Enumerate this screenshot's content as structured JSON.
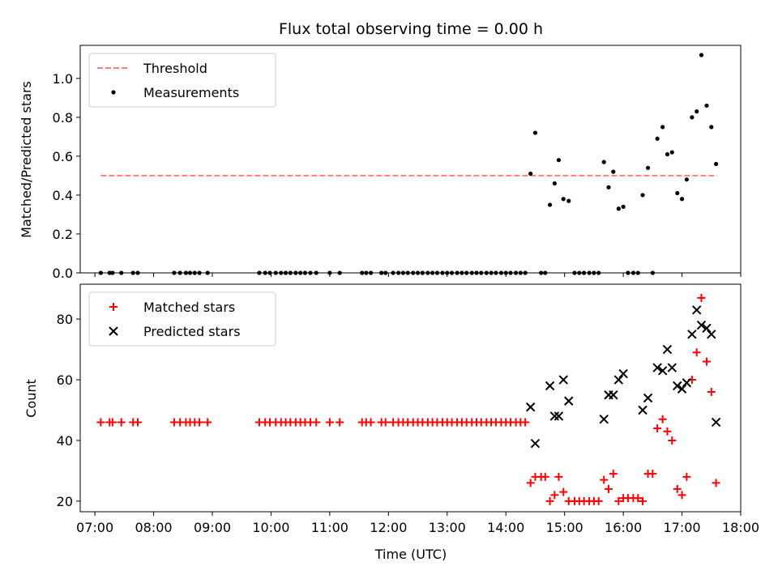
{
  "chart_data": [
    {
      "type": "scatter",
      "title": "Flux total observing time = 0.00 h",
      "xlabel": "",
      "ylabel": "Matched/Predicted stars",
      "xlim": [
        6.75,
        18.0
      ],
      "ylim": [
        0.0,
        1.17
      ],
      "yticks": [
        0.0,
        0.2,
        0.4,
        0.6,
        0.8,
        1.0
      ],
      "ytick_labels": [
        "0.0",
        "0.2",
        "0.4",
        "0.6",
        "0.8",
        "1.0"
      ],
      "legend": {
        "position": "top-left",
        "entries": [
          "Threshold",
          "Measurements"
        ]
      },
      "series": [
        {
          "name": "Threshold",
          "style": "dashed-line",
          "color": "#ff7f7f",
          "x": [
            7.1,
            17.6
          ],
          "y": [
            0.5,
            0.5
          ]
        },
        {
          "name": "Measurements",
          "style": "dot",
          "color": "#000000",
          "points": [
            [
              7.1,
              0
            ],
            [
              7.25,
              0
            ],
            [
              7.3,
              0
            ],
            [
              7.45,
              0
            ],
            [
              7.65,
              0
            ],
            [
              7.73,
              0
            ],
            [
              8.35,
              0
            ],
            [
              8.45,
              0
            ],
            [
              8.55,
              0
            ],
            [
              8.62,
              0
            ],
            [
              8.7,
              0
            ],
            [
              8.78,
              0
            ],
            [
              8.92,
              0
            ],
            [
              9.8,
              0
            ],
            [
              9.9,
              0
            ],
            [
              9.98,
              0
            ],
            [
              10.08,
              0
            ],
            [
              10.17,
              0
            ],
            [
              10.25,
              0
            ],
            [
              10.33,
              0
            ],
            [
              10.42,
              0
            ],
            [
              10.5,
              0
            ],
            [
              10.58,
              0
            ],
            [
              10.67,
              0
            ],
            [
              10.77,
              0
            ],
            [
              11.0,
              0
            ],
            [
              11.17,
              0
            ],
            [
              11.55,
              0
            ],
            [
              11.62,
              0
            ],
            [
              11.7,
              0
            ],
            [
              11.88,
              0
            ],
            [
              11.95,
              0
            ],
            [
              12.08,
              0
            ],
            [
              12.17,
              0
            ],
            [
              12.25,
              0
            ],
            [
              12.33,
              0
            ],
            [
              12.42,
              0
            ],
            [
              12.5,
              0
            ],
            [
              12.58,
              0
            ],
            [
              12.67,
              0
            ],
            [
              12.75,
              0
            ],
            [
              12.83,
              0
            ],
            [
              12.92,
              0
            ],
            [
              13.0,
              0
            ],
            [
              13.08,
              0
            ],
            [
              13.17,
              0
            ],
            [
              13.25,
              0
            ],
            [
              13.33,
              0
            ],
            [
              13.42,
              0
            ],
            [
              13.5,
              0
            ],
            [
              13.58,
              0
            ],
            [
              13.67,
              0
            ],
            [
              13.75,
              0
            ],
            [
              13.83,
              0
            ],
            [
              13.92,
              0
            ],
            [
              14.0,
              0
            ],
            [
              14.08,
              0
            ],
            [
              14.17,
              0
            ],
            [
              14.25,
              0
            ],
            [
              14.33,
              0
            ],
            [
              14.42,
              0.51
            ],
            [
              14.5,
              0.72
            ],
            [
              14.6,
              0
            ],
            [
              14.67,
              0
            ],
            [
              14.75,
              0.35
            ],
            [
              14.83,
              0.46
            ],
            [
              14.9,
              0.58
            ],
            [
              14.98,
              0.38
            ],
            [
              15.07,
              0.37
            ],
            [
              15.17,
              0
            ],
            [
              15.25,
              0
            ],
            [
              15.33,
              0
            ],
            [
              15.42,
              0
            ],
            [
              15.5,
              0
            ],
            [
              15.58,
              0
            ],
            [
              15.67,
              0.57
            ],
            [
              15.75,
              0.44
            ],
            [
              15.83,
              0.52
            ],
            [
              15.92,
              0.33
            ],
            [
              16.0,
              0.34
            ],
            [
              16.08,
              0
            ],
            [
              16.17,
              0
            ],
            [
              16.25,
              0
            ],
            [
              16.33,
              0.4
            ],
            [
              16.42,
              0.54
            ],
            [
              16.5,
              0
            ],
            [
              16.58,
              0.69
            ],
            [
              16.67,
              0.75
            ],
            [
              16.75,
              0.61
            ],
            [
              16.83,
              0.62
            ],
            [
              16.92,
              0.41
            ],
            [
              17.0,
              0.38
            ],
            [
              17.08,
              0.48
            ],
            [
              17.17,
              0.8
            ],
            [
              17.25,
              0.83
            ],
            [
              17.33,
              1.12
            ],
            [
              17.42,
              0.86
            ],
            [
              17.5,
              0.75
            ],
            [
              17.58,
              0.56
            ]
          ]
        }
      ]
    },
    {
      "type": "scatter",
      "title": "",
      "xlabel": "Time (UTC)",
      "ylabel": "Count",
      "xlim": [
        6.75,
        18.0
      ],
      "ylim": [
        16.5,
        91.5
      ],
      "yticks": [
        20,
        40,
        60,
        80
      ],
      "ytick_labels": [
        "20",
        "40",
        "60",
        "80"
      ],
      "xticks": [
        7,
        8,
        9,
        10,
        11,
        12,
        13,
        14,
        15,
        16,
        17,
        18
      ],
      "xtick_labels": [
        "07:00",
        "08:00",
        "09:00",
        "10:00",
        "11:00",
        "12:00",
        "13:00",
        "14:00",
        "15:00",
        "16:00",
        "17:00",
        "18:00"
      ],
      "legend": {
        "position": "top-left",
        "entries": [
          "Matched stars",
          "Predicted stars"
        ]
      },
      "series": [
        {
          "name": "Matched stars",
          "style": "plus",
          "color": "#ff0000",
          "points": [
            [
              7.1,
              46
            ],
            [
              7.25,
              46
            ],
            [
              7.3,
              46
            ],
            [
              7.45,
              46
            ],
            [
              7.65,
              46
            ],
            [
              7.73,
              46
            ],
            [
              8.35,
              46
            ],
            [
              8.45,
              46
            ],
            [
              8.55,
              46
            ],
            [
              8.62,
              46
            ],
            [
              8.7,
              46
            ],
            [
              8.78,
              46
            ],
            [
              8.92,
              46
            ],
            [
              9.8,
              46
            ],
            [
              9.9,
              46
            ],
            [
              9.98,
              46
            ],
            [
              10.08,
              46
            ],
            [
              10.17,
              46
            ],
            [
              10.25,
              46
            ],
            [
              10.33,
              46
            ],
            [
              10.42,
              46
            ],
            [
              10.5,
              46
            ],
            [
              10.58,
              46
            ],
            [
              10.67,
              46
            ],
            [
              10.77,
              46
            ],
            [
              11.0,
              46
            ],
            [
              11.17,
              46
            ],
            [
              11.55,
              46
            ],
            [
              11.62,
              46
            ],
            [
              11.7,
              46
            ],
            [
              11.88,
              46
            ],
            [
              11.95,
              46
            ],
            [
              12.08,
              46
            ],
            [
              12.17,
              46
            ],
            [
              12.25,
              46
            ],
            [
              12.33,
              46
            ],
            [
              12.42,
              46
            ],
            [
              12.5,
              46
            ],
            [
              12.58,
              46
            ],
            [
              12.67,
              46
            ],
            [
              12.75,
              46
            ],
            [
              12.83,
              46
            ],
            [
              12.92,
              46
            ],
            [
              13.0,
              46
            ],
            [
              13.08,
              46
            ],
            [
              13.17,
              46
            ],
            [
              13.25,
              46
            ],
            [
              13.33,
              46
            ],
            [
              13.42,
              46
            ],
            [
              13.5,
              46
            ],
            [
              13.58,
              46
            ],
            [
              13.67,
              46
            ],
            [
              13.75,
              46
            ],
            [
              13.83,
              46
            ],
            [
              13.92,
              46
            ],
            [
              14.0,
              46
            ],
            [
              14.08,
              46
            ],
            [
              14.17,
              46
            ],
            [
              14.25,
              46
            ],
            [
              14.33,
              46
            ],
            [
              14.42,
              26
            ],
            [
              14.5,
              28
            ],
            [
              14.6,
              28
            ],
            [
              14.67,
              28
            ],
            [
              14.75,
              20
            ],
            [
              14.83,
              22
            ],
            [
              14.9,
              28
            ],
            [
              14.98,
              23
            ],
            [
              15.07,
              20
            ],
            [
              15.17,
              20
            ],
            [
              15.25,
              20
            ],
            [
              15.33,
              20
            ],
            [
              15.42,
              20
            ],
            [
              15.5,
              20
            ],
            [
              15.58,
              20
            ],
            [
              15.67,
              27
            ],
            [
              15.75,
              24
            ],
            [
              15.83,
              29
            ],
            [
              15.92,
              20
            ],
            [
              16.0,
              21
            ],
            [
              16.08,
              21
            ],
            [
              16.17,
              21
            ],
            [
              16.25,
              21
            ],
            [
              16.33,
              20
            ],
            [
              16.42,
              29
            ],
            [
              16.5,
              29
            ],
            [
              16.58,
              44
            ],
            [
              16.67,
              47
            ],
            [
              16.75,
              43
            ],
            [
              16.83,
              40
            ],
            [
              16.92,
              24
            ],
            [
              17.0,
              22
            ],
            [
              17.08,
              28
            ],
            [
              17.17,
              60
            ],
            [
              17.25,
              69
            ],
            [
              17.33,
              87
            ],
            [
              17.42,
              66
            ],
            [
              17.5,
              56
            ],
            [
              17.58,
              26
            ]
          ]
        },
        {
          "name": "Predicted stars",
          "style": "x",
          "color": "#000000",
          "points": [
            [
              14.42,
              51
            ],
            [
              14.5,
              39
            ],
            [
              14.75,
              58
            ],
            [
              14.83,
              48
            ],
            [
              14.9,
              48
            ],
            [
              14.98,
              60
            ],
            [
              15.07,
              53
            ],
            [
              15.67,
              47
            ],
            [
              15.75,
              55
            ],
            [
              15.83,
              55
            ],
            [
              15.92,
              60
            ],
            [
              16.0,
              62
            ],
            [
              16.33,
              50
            ],
            [
              16.42,
              54
            ],
            [
              16.58,
              64
            ],
            [
              16.67,
              63
            ],
            [
              16.75,
              70
            ],
            [
              16.83,
              64
            ],
            [
              16.92,
              58
            ],
            [
              17.0,
              57
            ],
            [
              17.08,
              59
            ],
            [
              17.17,
              75
            ],
            [
              17.25,
              83
            ],
            [
              17.33,
              78
            ],
            [
              17.42,
              77
            ],
            [
              17.5,
              75
            ],
            [
              17.58,
              46
            ]
          ]
        }
      ]
    }
  ]
}
